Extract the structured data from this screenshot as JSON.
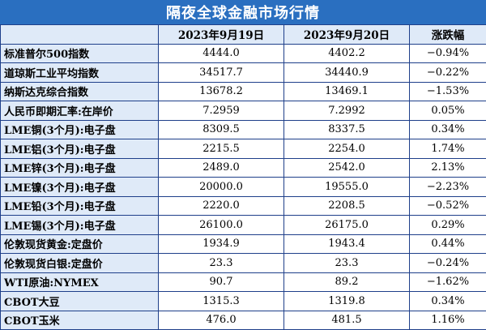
{
  "title": "隔夜全球金融市场行情",
  "columns": [
    "",
    "2023年9月19日",
    "2023年9月20日",
    "涨跌幅"
  ],
  "rows": [
    {
      "name": "标准普尔500指数",
      "d1": "4444.0",
      "d2": "4402.2",
      "chg": "−0.94%"
    },
    {
      "name": "道琼斯工业平均指数",
      "d1": "34517.7",
      "d2": "34440.9",
      "chg": "−0.22%"
    },
    {
      "name": "纳斯达克综合指数",
      "d1": "13678.2",
      "d2": "13469.1",
      "chg": "−1.53%"
    },
    {
      "name": "人民币即期汇率:在岸价",
      "d1": "7.2959",
      "d2": "7.2992",
      "chg": "0.05%"
    },
    {
      "name": "LME铜(3个月):电子盘",
      "d1": "8309.5",
      "d2": "8337.5",
      "chg": "0.34%"
    },
    {
      "name": "LME铝(3个月):电子盘",
      "d1": "2215.5",
      "d2": "2254.0",
      "chg": "1.74%"
    },
    {
      "name": "LME锌(3个月):电子盘",
      "d1": "2489.0",
      "d2": "2542.0",
      "chg": "2.13%"
    },
    {
      "name": "LME镍(3个月):电子盘",
      "d1": "20000.0",
      "d2": "19555.0",
      "chg": "−2.23%"
    },
    {
      "name": "LME铅(3个月):电子盘",
      "d1": "2220.0",
      "d2": "2208.5",
      "chg": "−0.52%"
    },
    {
      "name": "LME锡(3个月):电子盘",
      "d1": "26100.0",
      "d2": "26175.0",
      "chg": "0.29%"
    },
    {
      "name": "伦敦现货黄金:定盘价",
      "d1": "1934.9",
      "d2": "1943.4",
      "chg": "0.44%"
    },
    {
      "name": "伦敦现货白银:定盘价",
      "d1": "23.3",
      "d2": "23.3",
      "chg": "−0.24%"
    },
    {
      "name": "WTI原油:NYMEX",
      "d1": "90.7",
      "d2": "89.2",
      "chg": "−1.62%"
    },
    {
      "name": "CBOT大豆",
      "d1": "1315.3",
      "d2": "1319.8",
      "chg": "0.34%"
    },
    {
      "name": "CBOT玉米",
      "d1": "476.0",
      "d2": "481.5",
      "chg": "1.16%"
    }
  ],
  "colors": {
    "title_bg": "#2a6fc0",
    "header_bg": "#dfeaf8",
    "border": "#1e3f8a"
  }
}
